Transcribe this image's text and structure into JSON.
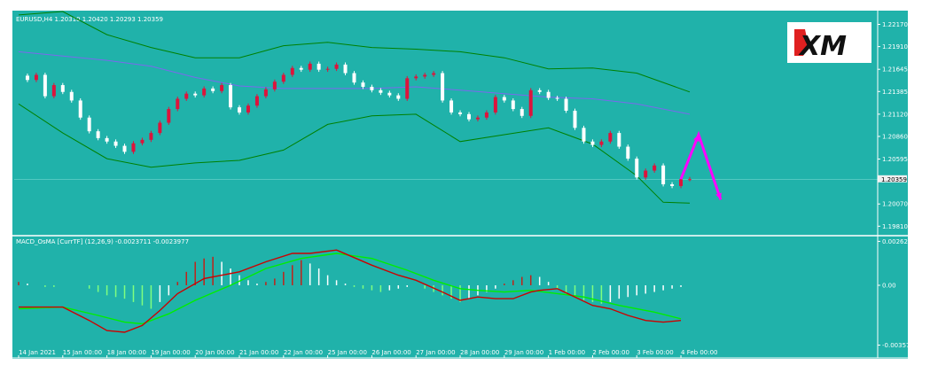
{
  "colors": {
    "background": "#20b2aa",
    "bull_candle": "#dc143c",
    "bear_candle": "#ffffff",
    "bollinger": "#008000",
    "moving_average": "#7b68ee",
    "macd_line": "#cc0000",
    "signal_line": "#00ee00",
    "forecast_arrow": "#ff00ff"
  },
  "logo": {
    "text": "XM"
  },
  "chart_data": [
    {
      "type": "candlestick",
      "title": "EURUSD,H4  1.20310 1.20420 1.20293 1.20359",
      "symbol": "EURUSD",
      "timeframe": "H4",
      "ohlc_header": {
        "open": 1.2031,
        "high": 1.2042,
        "low": 1.20293,
        "close": 1.20359
      },
      "current_price_label": "1.20359",
      "current_price": 1.20359,
      "y_ticks": [
        {
          "label": "1.22170",
          "v": 1.2217
        },
        {
          "label": "1.21910",
          "v": 1.2191
        },
        {
          "label": "1.21645",
          "v": 1.21645
        },
        {
          "label": "1.21385",
          "v": 1.21385
        },
        {
          "label": "1.21120",
          "v": 1.2112
        },
        {
          "label": "1.20860",
          "v": 1.2086
        },
        {
          "label": "1.20595",
          "v": 1.20595
        },
        {
          "label": "1.20070",
          "v": 1.2007
        },
        {
          "label": "1.19810",
          "v": 1.1981
        }
      ],
      "ylim": [
        1.1972,
        1.2231
      ],
      "x_range": [
        0,
        152
      ],
      "x_ticks": [
        {
          "label": "14 Jan 2021",
          "x": 0
        },
        {
          "label": "15 Jan 00:00",
          "x": 10
        },
        {
          "label": "18 Jan 00:00",
          "x": 20
        },
        {
          "label": "19 Jan 00:00",
          "x": 30
        },
        {
          "label": "20 Jan 00:00",
          "x": 40
        },
        {
          "label": "21 Jan 00:00",
          "x": 50
        },
        {
          "label": "22 Jan 00:00",
          "x": 60
        },
        {
          "label": "25 Jan 00:00",
          "x": 70
        },
        {
          "label": "26 Jan 00:00",
          "x": 80
        },
        {
          "label": "27 Jan 00:00",
          "x": 90
        },
        {
          "label": "28 Jan 00:00",
          "x": 100
        },
        {
          "label": "29 Jan 00:00",
          "x": 110
        },
        {
          "label": "1 Feb 00:00",
          "x": 120
        },
        {
          "label": "2 Feb 00:00",
          "x": 130
        },
        {
          "label": "3 Feb 00:00",
          "x": 140
        },
        {
          "label": "4 Feb 00:00",
          "x": 150
        }
      ],
      "candle_close_path": [
        [
          0,
          1.2157
        ],
        [
          2,
          1.2152
        ],
        [
          4,
          1.2158
        ],
        [
          6,
          1.2133
        ],
        [
          8,
          1.2146
        ],
        [
          10,
          1.2138
        ],
        [
          12,
          1.2128
        ],
        [
          14,
          1.2108
        ],
        [
          16,
          1.2092
        ],
        [
          18,
          1.2084
        ],
        [
          20,
          1.208
        ],
        [
          22,
          1.2075
        ],
        [
          24,
          1.2068
        ],
        [
          26,
          1.2078
        ],
        [
          28,
          1.2082
        ],
        [
          30,
          1.209
        ],
        [
          32,
          1.2102
        ],
        [
          34,
          1.2118
        ],
        [
          36,
          1.213
        ],
        [
          38,
          1.2136
        ],
        [
          40,
          1.2134
        ],
        [
          42,
          1.2142
        ],
        [
          44,
          1.2139
        ],
        [
          46,
          1.2146
        ],
        [
          48,
          1.212
        ],
        [
          50,
          1.2114
        ],
        [
          52,
          1.2122
        ],
        [
          54,
          1.2133
        ],
        [
          56,
          1.2141
        ],
        [
          58,
          1.215
        ],
        [
          60,
          1.2158
        ],
        [
          62,
          1.2166
        ],
        [
          64,
          1.2164
        ],
        [
          66,
          1.2171
        ],
        [
          68,
          1.2164
        ],
        [
          70,
          1.2165
        ],
        [
          72,
          1.217
        ],
        [
          74,
          1.216
        ],
        [
          76,
          1.2149
        ],
        [
          78,
          1.2144
        ],
        [
          80,
          1.214
        ],
        [
          82,
          1.2137
        ],
        [
          84,
          1.2134
        ],
        [
          86,
          1.213
        ],
        [
          88,
          1.2154
        ],
        [
          90,
          1.2156
        ],
        [
          92,
          1.2158
        ],
        [
          94,
          1.216
        ],
        [
          96,
          1.2128
        ],
        [
          98,
          1.2114
        ],
        [
          100,
          1.2112
        ],
        [
          102,
          1.2106
        ],
        [
          104,
          1.2108
        ],
        [
          106,
          1.2114
        ],
        [
          108,
          1.2132
        ],
        [
          110,
          1.2128
        ],
        [
          112,
          1.2118
        ],
        [
          114,
          1.211
        ],
        [
          116,
          1.214
        ],
        [
          118,
          1.2138
        ],
        [
          120,
          1.2131
        ],
        [
          122,
          1.213
        ],
        [
          124,
          1.2116
        ],
        [
          126,
          1.2096
        ],
        [
          128,
          1.208
        ],
        [
          130,
          1.2076
        ],
        [
          132,
          1.208
        ],
        [
          134,
          1.209
        ],
        [
          136,
          1.2074
        ],
        [
          138,
          1.206
        ],
        [
          140,
          1.2038
        ],
        [
          142,
          1.2046
        ],
        [
          144,
          1.2052
        ],
        [
          146,
          1.203
        ],
        [
          148,
          1.2028
        ],
        [
          150,
          1.2036
        ],
        [
          152,
          1.2036
        ]
      ],
      "bollinger_upper": [
        [
          0,
          1.2228
        ],
        [
          10,
          1.2232
        ],
        [
          20,
          1.2205
        ],
        [
          30,
          1.219
        ],
        [
          40,
          1.2178
        ],
        [
          50,
          1.2178
        ],
        [
          60,
          1.2192
        ],
        [
          70,
          1.2196
        ],
        [
          80,
          1.219
        ],
        [
          90,
          1.2188
        ],
        [
          100,
          1.2185
        ],
        [
          110,
          1.2178
        ],
        [
          120,
          1.2165
        ],
        [
          130,
          1.2166
        ],
        [
          140,
          1.216
        ],
        [
          152,
          1.2138
        ]
      ],
      "bollinger_lower": [
        [
          0,
          1.2124
        ],
        [
          10,
          1.209
        ],
        [
          20,
          1.206
        ],
        [
          30,
          1.205
        ],
        [
          40,
          1.2055
        ],
        [
          50,
          1.2058
        ],
        [
          60,
          1.207
        ],
        [
          70,
          1.21
        ],
        [
          80,
          1.211
        ],
        [
          90,
          1.2112
        ],
        [
          100,
          1.208
        ],
        [
          110,
          1.2088
        ],
        [
          120,
          1.2096
        ],
        [
          130,
          1.2077
        ],
        [
          140,
          1.204
        ],
        [
          146,
          1.2009
        ],
        [
          152,
          1.2008
        ]
      ],
      "moving_average": [
        [
          0,
          1.2185
        ],
        [
          10,
          1.218
        ],
        [
          20,
          1.2175
        ],
        [
          30,
          1.2168
        ],
        [
          40,
          1.2155
        ],
        [
          50,
          1.2145
        ],
        [
          60,
          1.2142
        ],
        [
          70,
          1.2142
        ],
        [
          80,
          1.2142
        ],
        [
          90,
          1.2144
        ],
        [
          100,
          1.214
        ],
        [
          110,
          1.2136
        ],
        [
          120,
          1.2132
        ],
        [
          130,
          1.213
        ],
        [
          140,
          1.2124
        ],
        [
          152,
          1.2112
        ]
      ],
      "forecast_arrow": [
        [
          150,
          1.2036
        ],
        [
          154,
          1.2088
        ],
        [
          159,
          1.2012
        ]
      ]
    },
    {
      "type": "bar",
      "title": "MACD_OsMA [CurrTF] (12,26,9) -0.0023711 -0.0023977",
      "y_ticks": [
        {
          "label": "0.00262",
          "v": 0.00262
        },
        {
          "label": "0.00",
          "v": 0.0
        },
        {
          "label": "-0.00357",
          "v": -0.00357
        }
      ],
      "ylim": [
        -0.0037,
        0.0028
      ],
      "x_range": [
        0,
        152
      ],
      "histogram": [
        [
          0,
          0.0002
        ],
        [
          2,
          0.0001
        ],
        [
          4,
          0.0
        ],
        [
          6,
          -0.0001
        ],
        [
          8,
          -0.0001
        ],
        [
          10,
          0.0
        ],
        [
          12,
          0.0
        ],
        [
          14,
          0.0
        ],
        [
          16,
          -0.0002
        ],
        [
          18,
          -0.0004
        ],
        [
          20,
          -0.0006
        ],
        [
          22,
          -0.0007
        ],
        [
          24,
          -0.0008
        ],
        [
          26,
          -0.001
        ],
        [
          28,
          -0.0012
        ],
        [
          30,
          -0.0014
        ],
        [
          32,
          -0.001
        ],
        [
          34,
          -0.0006
        ],
        [
          36,
          0.0002
        ],
        [
          38,
          0.0008
        ],
        [
          40,
          0.0014
        ],
        [
          42,
          0.0016
        ],
        [
          44,
          0.0017
        ],
        [
          46,
          0.0014
        ],
        [
          48,
          0.001
        ],
        [
          50,
          0.0006
        ],
        [
          52,
          0.0003
        ],
        [
          54,
          0.0001
        ],
        [
          56,
          0.0002
        ],
        [
          58,
          0.0004
        ],
        [
          60,
          0.0008
        ],
        [
          62,
          0.0012
        ],
        [
          64,
          0.0015
        ],
        [
          66,
          0.0013
        ],
        [
          68,
          0.001
        ],
        [
          70,
          0.0006
        ],
        [
          72,
          0.0003
        ],
        [
          74,
          0.0001
        ],
        [
          76,
          -0.0001
        ],
        [
          78,
          -0.0002
        ],
        [
          80,
          -0.0003
        ],
        [
          82,
          -0.0004
        ],
        [
          84,
          -0.0003
        ],
        [
          86,
          -0.0002
        ],
        [
          88,
          -0.0001
        ],
        [
          90,
          0.0
        ],
        [
          92,
          -0.0002
        ],
        [
          94,
          -0.0004
        ],
        [
          96,
          -0.0006
        ],
        [
          98,
          -0.0008
        ],
        [
          100,
          -0.001
        ],
        [
          102,
          -0.0008
        ],
        [
          104,
          -0.0006
        ],
        [
          106,
          -0.0004
        ],
        [
          108,
          -0.0002
        ],
        [
          110,
          0.0001
        ],
        [
          112,
          0.0003
        ],
        [
          114,
          0.0005
        ],
        [
          116,
          0.0006
        ],
        [
          118,
          0.0005
        ],
        [
          120,
          0.0002
        ],
        [
          122,
          -0.0002
        ],
        [
          124,
          -0.0005
        ],
        [
          126,
          -0.0007
        ],
        [
          128,
          -0.0009
        ],
        [
          130,
          -0.001
        ],
        [
          132,
          -0.0011
        ],
        [
          134,
          -0.001
        ],
        [
          136,
          -0.0008
        ],
        [
          138,
          -0.0007
        ],
        [
          140,
          -0.0006
        ],
        [
          142,
          -0.0005
        ],
        [
          144,
          -0.0004
        ],
        [
          146,
          -0.0003
        ],
        [
          148,
          -0.0002
        ],
        [
          150,
          -0.0001
        ]
      ],
      "macd_line": [
        [
          0,
          -0.0013
        ],
        [
          10,
          -0.0013
        ],
        [
          16,
          -0.0021
        ],
        [
          20,
          -0.0027
        ],
        [
          24,
          -0.0028
        ],
        [
          28,
          -0.0024
        ],
        [
          32,
          -0.0015
        ],
        [
          36,
          -0.0005
        ],
        [
          42,
          0.0004
        ],
        [
          50,
          0.0008
        ],
        [
          56,
          0.0014
        ],
        [
          62,
          0.0019
        ],
        [
          66,
          0.0019
        ],
        [
          72,
          0.0021
        ],
        [
          80,
          0.0012
        ],
        [
          86,
          0.0006
        ],
        [
          90,
          0.0003
        ],
        [
          96,
          -0.0004
        ],
        [
          100,
          -0.0009
        ],
        [
          104,
          -0.0007
        ],
        [
          108,
          -0.0008
        ],
        [
          112,
          -0.0008
        ],
        [
          116,
          -0.0004
        ],
        [
          118,
          -0.0003
        ],
        [
          122,
          -0.0002
        ],
        [
          126,
          -0.0007
        ],
        [
          130,
          -0.0012
        ],
        [
          134,
          -0.0014
        ],
        [
          138,
          -0.0018
        ],
        [
          142,
          -0.0021
        ],
        [
          146,
          -0.0022
        ],
        [
          150,
          -0.0021
        ]
      ],
      "signal_line": [
        [
          0,
          -0.0014
        ],
        [
          10,
          -0.0013
        ],
        [
          18,
          -0.0018
        ],
        [
          24,
          -0.0022
        ],
        [
          28,
          -0.0023
        ],
        [
          34,
          -0.0017
        ],
        [
          40,
          -0.0009
        ],
        [
          48,
          0.0
        ],
        [
          56,
          0.001
        ],
        [
          64,
          0.0016
        ],
        [
          72,
          0.0019
        ],
        [
          80,
          0.0016
        ],
        [
          88,
          0.0009
        ],
        [
          94,
          0.0003
        ],
        [
          100,
          -0.0002
        ],
        [
          104,
          -0.0003
        ],
        [
          110,
          -0.0004
        ],
        [
          116,
          -0.0003
        ],
        [
          122,
          -0.0005
        ],
        [
          128,
          -0.0007
        ],
        [
          136,
          -0.0012
        ],
        [
          144,
          -0.0016
        ],
        [
          150,
          -0.002
        ]
      ]
    }
  ]
}
